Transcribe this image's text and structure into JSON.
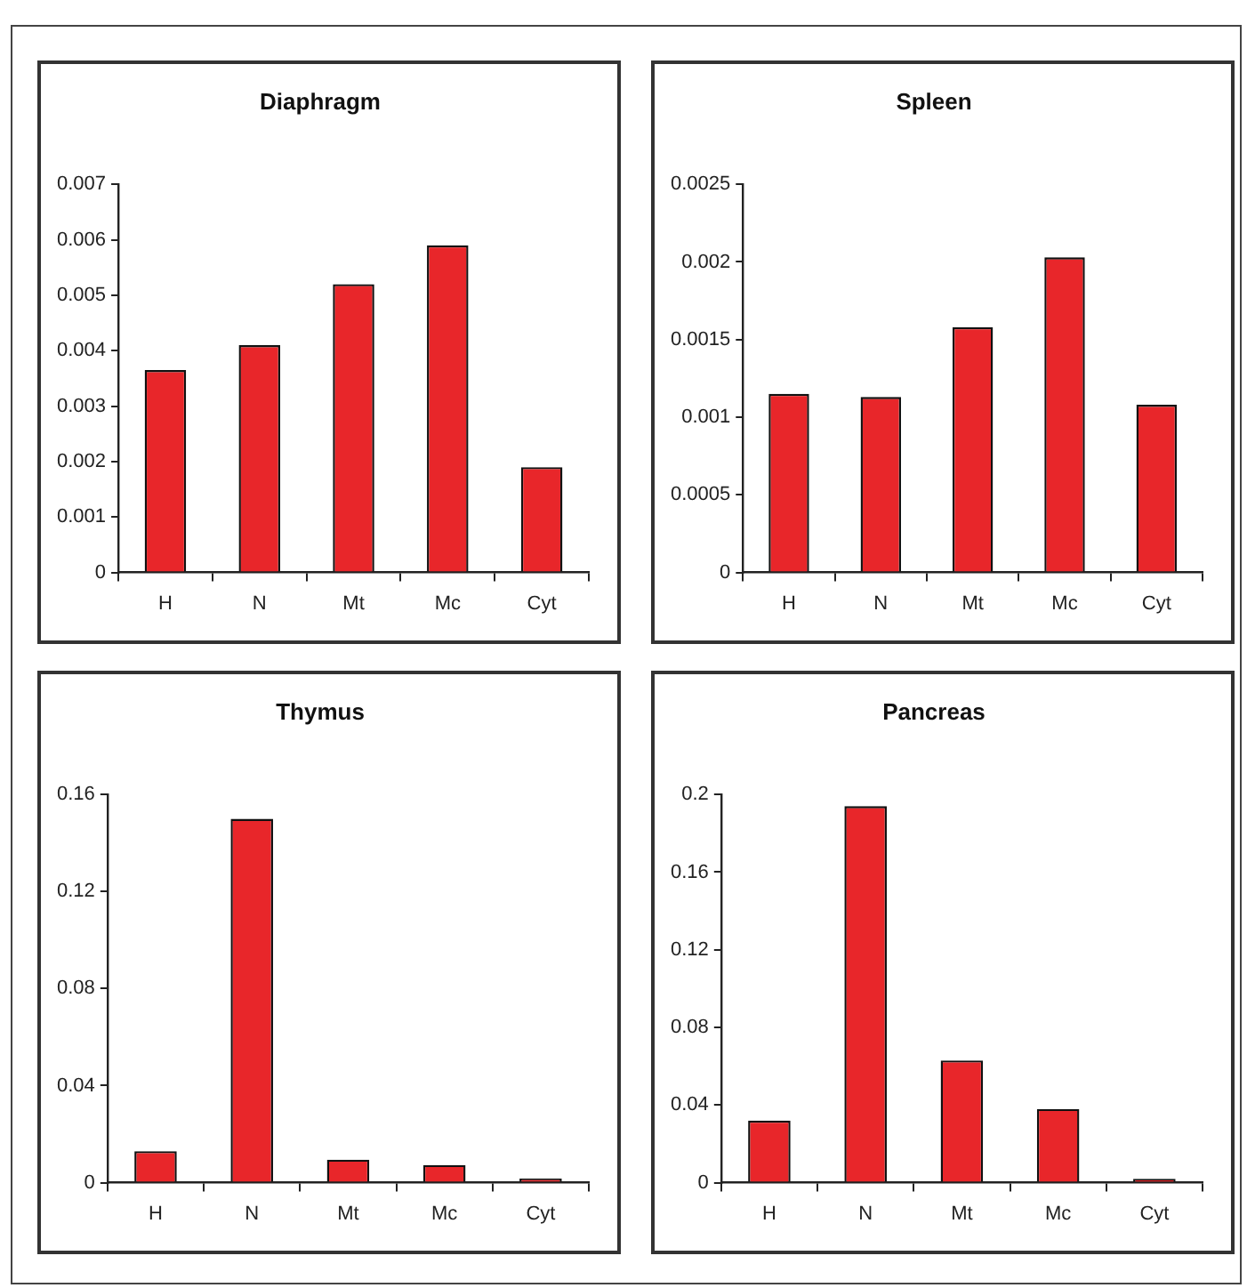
{
  "chart_data": [
    {
      "type": "bar",
      "title": "Diaphragm",
      "categories": [
        "H",
        "N",
        "Mt",
        "Mc",
        "Cyt"
      ],
      "color": "#e8262a",
      "values": [
        0.00365,
        0.0041,
        0.0052,
        0.0059,
        0.0019
      ],
      "ylim": [
        0,
        0.007
      ],
      "yticks": [
        0,
        0.001,
        0.002,
        0.003,
        0.004,
        0.005,
        0.006,
        0.007
      ],
      "grid": false,
      "legend": false
    },
    {
      "type": "bar",
      "title": "Spleen",
      "categories": [
        "H",
        "N",
        "Mt",
        "Mc",
        "Cyt"
      ],
      "color": "#e8262a",
      "values": [
        0.00115,
        0.00113,
        0.00158,
        0.00203,
        0.00108
      ],
      "ylim": [
        0,
        0.0025
      ],
      "yticks": [
        0,
        0.0005,
        0.001,
        0.0015,
        0.002,
        0.0025
      ],
      "grid": false,
      "legend": false
    },
    {
      "type": "bar",
      "title": "Thymus",
      "categories": [
        "H",
        "N",
        "Mt",
        "Mc",
        "Cyt"
      ],
      "color": "#e8262a",
      "values": [
        0.013,
        0.15,
        0.0095,
        0.0073,
        0.0017
      ],
      "ylim": [
        0,
        0.16
      ],
      "yticks": [
        0,
        0.04,
        0.08,
        0.12,
        0.16
      ],
      "grid": false,
      "legend": false
    },
    {
      "type": "bar",
      "title": "Pancreas",
      "categories": [
        "H",
        "N",
        "Mt",
        "Mc",
        "Cyt"
      ],
      "color": "#e8262a",
      "values": [
        0.032,
        0.194,
        0.063,
        0.038,
        0.002
      ],
      "ylim": [
        0,
        0.2
      ],
      "yticks": [
        0,
        0.04,
        0.08,
        0.12,
        0.16,
        0.2
      ],
      "grid": false,
      "legend": false
    }
  ]
}
